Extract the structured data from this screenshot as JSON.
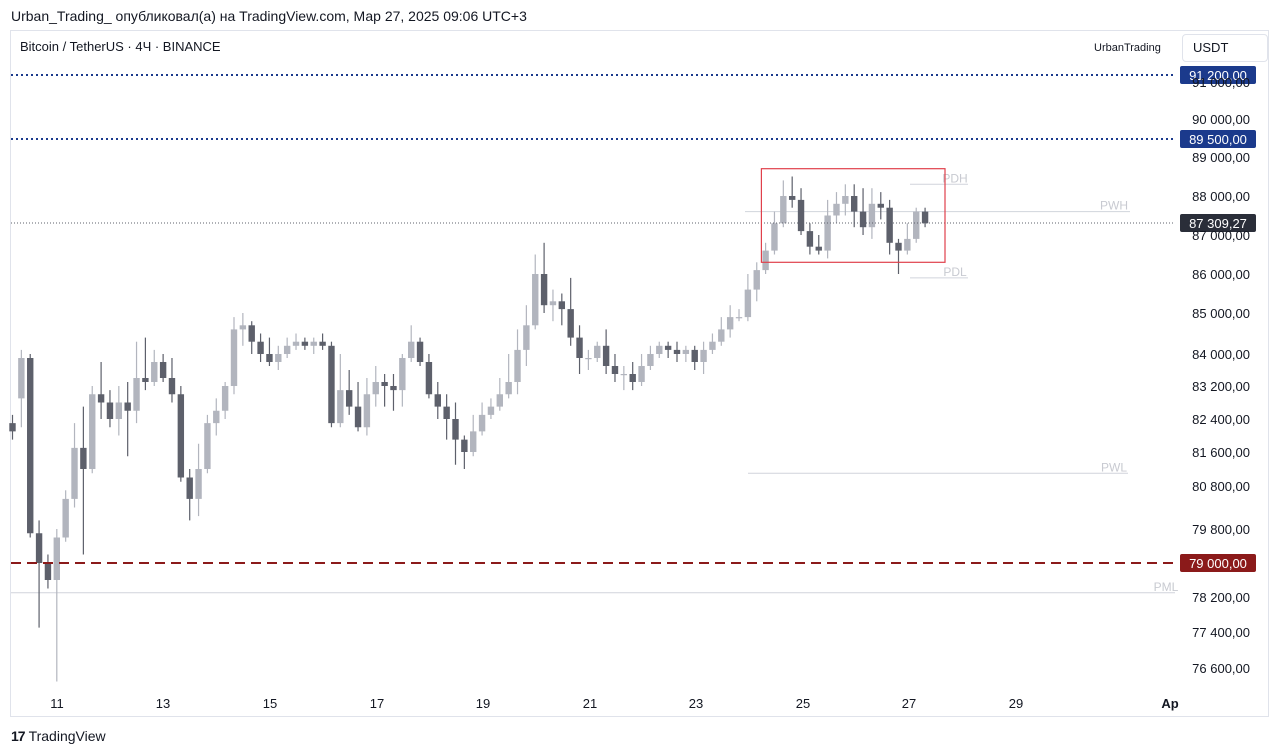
{
  "caption": "Urban_Trading_ опубликовал(а) на TradingView.com, Мар 27, 2025 09:06 UTC+3",
  "symbol": "Bitcoin / TetherUS · 4Ч · BINANCE",
  "author": "UrbanTrading",
  "currency": "USDT",
  "brand": {
    "logo": "17",
    "name": "TradingView"
  },
  "colors": {
    "down": "#5d606b",
    "up": "#b2b5be",
    "blue_level": "#1b3a8c",
    "red_level": "#8b1a1a",
    "box": "#e0404b",
    "price_label": "#2a2e39"
  },
  "chart_data": {
    "type": "candlestick",
    "title": "Bitcoin / TetherUS · 4Ч · BINANCE",
    "x_ticks": [
      "11",
      "13",
      "15",
      "17",
      "19",
      "21",
      "23",
      "25",
      "27",
      "29",
      "Ap"
    ],
    "y_ticks": [
      "76 600,00",
      "77 400,00",
      "78 200,00",
      "79 800,00",
      "80 800,00",
      "81 600,00",
      "82 400,00",
      "83 200,00",
      "84 000,00",
      "85 000,00",
      "86 000,00",
      "87 000,00",
      "88 000,00",
      "89 000,00",
      "90 000,00",
      "91 000,00"
    ],
    "y_tick_values": [
      76600,
      77400,
      78200,
      79800,
      80800,
      81600,
      82400,
      83200,
      84000,
      85000,
      86000,
      87000,
      88000,
      89000,
      90000,
      91000
    ],
    "ylim": [
      76100,
      91600
    ],
    "levels": [
      {
        "price": 91200,
        "label": "91 200,00",
        "style": "dotted",
        "color": "#1b3a8c"
      },
      {
        "price": 89500,
        "label": "89 500,00",
        "style": "dotted",
        "color": "#1b3a8c"
      },
      {
        "price": 79000,
        "label": "79 000,00",
        "style": "dashed",
        "color": "#8b1a1a"
      }
    ],
    "last_price": {
      "price": 87309.27,
      "label": "87 309,27"
    },
    "annotations": [
      {
        "text": "PDH",
        "price": 88300
      },
      {
        "text": "PWH",
        "price": 87600
      },
      {
        "text": "PDL",
        "price": 85900
      },
      {
        "text": "PWL",
        "price": 81100
      },
      {
        "text": "PML",
        "price": 78300
      }
    ],
    "highlight_box": {
      "price_top": 88700,
      "price_bottom": 86300
    },
    "candles": [
      [
        82300,
        82100,
        82500,
        81900
      ],
      [
        82900,
        83900,
        84100,
        82200
      ],
      [
        83900,
        79700,
        84000,
        79600
      ],
      [
        79700,
        79000,
        80000,
        77500
      ],
      [
        79000,
        78600,
        79200,
        78400
      ],
      [
        78600,
        79600,
        79800,
        76300
      ],
      [
        79600,
        80500,
        80700,
        79500
      ],
      [
        80500,
        81700,
        82300,
        80300
      ],
      [
        81700,
        81200,
        82700,
        79200
      ],
      [
        81200,
        83000,
        83200,
        81100
      ],
      [
        83000,
        82800,
        83800,
        82400
      ],
      [
        82800,
        82400,
        83100,
        82200
      ],
      [
        82400,
        82800,
        83200,
        82000
      ],
      [
        82800,
        82600,
        83300,
        81500
      ],
      [
        82600,
        83400,
        84300,
        82300
      ],
      [
        83400,
        83300,
        84400,
        83100
      ],
      [
        83300,
        83800,
        84100,
        83200
      ],
      [
        83800,
        83400,
        84000,
        83300
      ],
      [
        83400,
        83000,
        83900,
        82800
      ],
      [
        83000,
        81000,
        83200,
        80900
      ],
      [
        81000,
        80500,
        81200,
        80000
      ],
      [
        80500,
        81200,
        81800,
        80100
      ],
      [
        81200,
        82300,
        82500,
        81100
      ],
      [
        82300,
        82600,
        82900,
        82000
      ],
      [
        82600,
        83200,
        83300,
        82400
      ],
      [
        83200,
        84600,
        84900,
        83000
      ],
      [
        84600,
        84700,
        85000,
        84200
      ],
      [
        84700,
        84300,
        84800,
        84000
      ],
      [
        84300,
        84000,
        84500,
        83800
      ],
      [
        84000,
        83800,
        84400,
        83700
      ],
      [
        83800,
        84000,
        84200,
        83600
      ],
      [
        84000,
        84200,
        84400,
        83900
      ],
      [
        84200,
        84300,
        84500,
        84100
      ],
      [
        84300,
        84200,
        84400,
        84100
      ],
      [
        84200,
        84300,
        84400,
        84000
      ],
      [
        84300,
        84200,
        84500,
        84100
      ],
      [
        84200,
        82300,
        84300,
        82200
      ],
      [
        82300,
        83100,
        84000,
        82200
      ],
      [
        83100,
        82700,
        83600,
        82500
      ],
      [
        82700,
        82200,
        83300,
        82100
      ],
      [
        82200,
        83000,
        83400,
        82000
      ],
      [
        83000,
        83300,
        83700,
        82700
      ],
      [
        83300,
        83200,
        83500,
        82700
      ],
      [
        83200,
        83100,
        83500,
        82600
      ],
      [
        83100,
        83900,
        84000,
        82700
      ],
      [
        83900,
        84300,
        84700,
        83800
      ],
      [
        84300,
        83800,
        84400,
        83700
      ],
      [
        83800,
        83000,
        84000,
        82900
      ],
      [
        83000,
        82700,
        83300,
        82400
      ],
      [
        82700,
        82400,
        83000,
        81900
      ],
      [
        82400,
        81900,
        82800,
        81300
      ],
      [
        81900,
        81600,
        82000,
        81200
      ],
      [
        81600,
        82100,
        82500,
        81500
      ],
      [
        82100,
        82500,
        82800,
        82000
      ],
      [
        82500,
        82700,
        82900,
        82400
      ],
      [
        82700,
        83000,
        83400,
        82600
      ],
      [
        83000,
        83300,
        84000,
        82900
      ],
      [
        83300,
        84100,
        84600,
        83000
      ],
      [
        84100,
        84700,
        85200,
        83700
      ],
      [
        84700,
        86000,
        86500,
        84600
      ],
      [
        86000,
        85200,
        86800,
        85000
      ],
      [
        85200,
        85300,
        85600,
        84800
      ],
      [
        85300,
        85100,
        85500,
        84700
      ],
      [
        85100,
        84400,
        85900,
        84200
      ],
      [
        84400,
        83900,
        84700,
        83500
      ],
      [
        83900,
        83900,
        84100,
        83600
      ],
      [
        83900,
        84200,
        84300,
        83800
      ],
      [
        84200,
        83700,
        84600,
        83500
      ],
      [
        83700,
        83500,
        84000,
        83300
      ],
      [
        83500,
        83500,
        83700,
        83100
      ],
      [
        83500,
        83300,
        83800,
        83100
      ],
      [
        83300,
        83700,
        84000,
        83200
      ],
      [
        83700,
        84000,
        84200,
        83600
      ],
      [
        84000,
        84200,
        84300,
        83900
      ],
      [
        84200,
        84100,
        84300,
        83900
      ],
      [
        84100,
        84000,
        84300,
        83800
      ],
      [
        84000,
        84100,
        84200,
        83800
      ],
      [
        84100,
        83800,
        84200,
        83600
      ],
      [
        83800,
        84100,
        84300,
        83500
      ],
      [
        84100,
        84300,
        84500,
        84000
      ],
      [
        84300,
        84600,
        84900,
        84200
      ],
      [
        84600,
        84900,
        85200,
        84400
      ],
      [
        84900,
        84900,
        85100,
        84800
      ],
      [
        84900,
        85600,
        86000,
        84800
      ],
      [
        85600,
        86100,
        86300,
        85300
      ],
      [
        86100,
        86600,
        86800,
        86000
      ],
      [
        86600,
        87300,
        87600,
        86500
      ],
      [
        87300,
        88000,
        88400,
        87200
      ],
      [
        88000,
        87900,
        88500,
        87700
      ],
      [
        87900,
        87100,
        88200,
        87000
      ],
      [
        87100,
        86700,
        87300,
        86500
      ],
      [
        86700,
        86600,
        87000,
        86500
      ],
      [
        86600,
        87500,
        87900,
        86400
      ],
      [
        87500,
        87800,
        88100,
        87300
      ],
      [
        87800,
        88000,
        88300,
        87500
      ],
      [
        88000,
        87600,
        88300,
        87200
      ],
      [
        87600,
        87200,
        88200,
        87000
      ],
      [
        87200,
        87800,
        88200,
        86900
      ],
      [
        87800,
        87700,
        88100,
        87400
      ],
      [
        87700,
        86800,
        87900,
        86500
      ],
      [
        86800,
        86600,
        86900,
        86000
      ],
      [
        86600,
        86900,
        87300,
        86500
      ],
      [
        86900,
        87600,
        87700,
        86800
      ],
      [
        87600,
        87300,
        87700,
        87200
      ]
    ]
  }
}
